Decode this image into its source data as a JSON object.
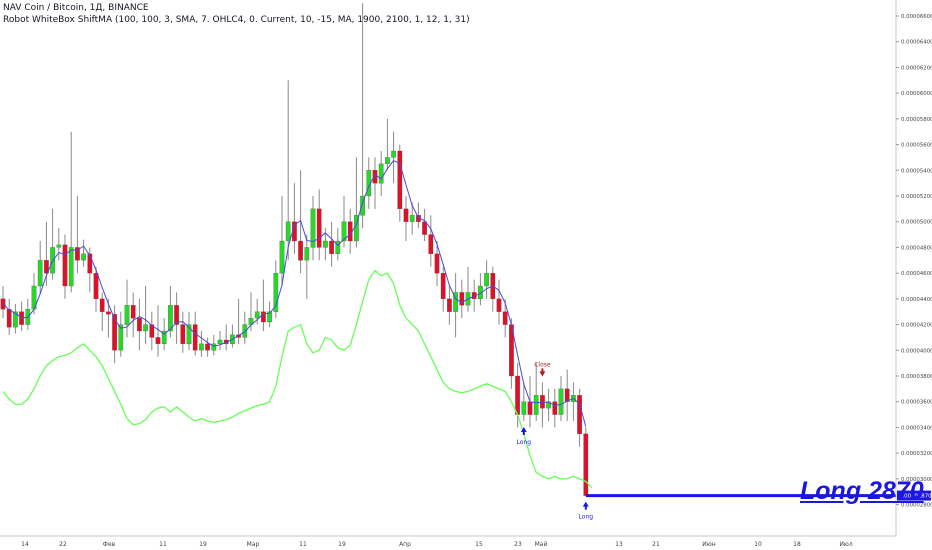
{
  "header": {
    "symbol_line": "NAV Coin / Bitcoin, 1Д, BINANCE",
    "indicator_line": "Robot WhiteBox ShiftMA (100, 100, 3, SMA, 7. OHLC4, 0. Current, 10, -15, MA, 1900, 2100, 1, 12, 1, 31)"
  },
  "chart_data": {
    "type": "candlestick",
    "title": "NAV Coin / Bitcoin, 1Д, BINANCE",
    "y_range": [
      2.67e-05,
      6.7e-05
    ],
    "y_ticks": [
      "0.00006600",
      "0.00006400",
      "0.00006200",
      "0.00006000",
      "0.00005800",
      "0.00005600",
      "0.00005400",
      "0.00005200",
      "0.00005000",
      "0.00004800",
      "0.00004600",
      "0.00004400",
      "0.00004200",
      "0.00004000",
      "0.00003800",
      "0.00003600",
      "0.00003400",
      "0.00003200",
      "0.00003000",
      "0.00002800"
    ],
    "x_ticks": [
      "14",
      "22",
      "Фев",
      "11",
      "19",
      "Мар",
      "11",
      "19",
      "Апр",
      "15",
      "23",
      "Май",
      "13",
      "21",
      "Июн",
      "10",
      "18",
      "Июл"
    ],
    "grid": false,
    "candles": [
      [
        4.4,
        4.32,
        4.5,
        4.25
      ],
      [
        4.32,
        4.18,
        4.4,
        4.12
      ],
      [
        4.18,
        4.3,
        4.36,
        4.13
      ],
      [
        4.3,
        4.2,
        4.38,
        4.15
      ],
      [
        4.2,
        4.32,
        4.4,
        4.16
      ],
      [
        4.32,
        4.5,
        4.6,
        4.28
      ],
      [
        4.5,
        4.7,
        4.85,
        4.44
      ],
      [
        4.7,
        4.6,
        5.0,
        4.5
      ],
      [
        4.6,
        4.8,
        5.1,
        4.55
      ],
      [
        4.8,
        4.82,
        4.95,
        4.7
      ],
      [
        4.82,
        4.5,
        4.9,
        4.4
      ],
      [
        4.5,
        4.8,
        5.7,
        4.45
      ],
      [
        4.8,
        4.7,
        5.2,
        4.6
      ],
      [
        4.7,
        4.75,
        4.86,
        4.65
      ],
      [
        4.75,
        4.6,
        4.8,
        4.45
      ],
      [
        4.6,
        4.4,
        4.65,
        4.3
      ],
      [
        4.4,
        4.3,
        4.45,
        4.15
      ],
      [
        4.3,
        4.28,
        4.4,
        4.1
      ],
      [
        4.28,
        4.0,
        4.35,
        3.9
      ],
      [
        4.0,
        4.2,
        4.3,
        3.95
      ],
      [
        4.2,
        4.35,
        4.55,
        4.1
      ],
      [
        4.35,
        4.25,
        4.45,
        4.1
      ],
      [
        4.25,
        4.15,
        4.4,
        4.0
      ],
      [
        4.15,
        4.2,
        4.5,
        4.05
      ],
      [
        4.2,
        4.1,
        4.3,
        4.0
      ],
      [
        4.1,
        4.05,
        4.35,
        3.95
      ],
      [
        4.05,
        4.15,
        4.25,
        4.0
      ],
      [
        4.15,
        4.35,
        4.5,
        4.1
      ],
      [
        4.35,
        4.2,
        4.45,
        4.05
      ],
      [
        4.2,
        4.05,
        4.3,
        3.98
      ],
      [
        4.05,
        4.2,
        4.3,
        4.0
      ],
      [
        4.2,
        4.0,
        4.3,
        3.96
      ],
      [
        4.0,
        4.05,
        4.15,
        3.95
      ],
      [
        4.05,
        4.0,
        4.1,
        3.95
      ],
      [
        4.0,
        4.05,
        4.12,
        3.96
      ],
      [
        4.05,
        4.08,
        4.15,
        4.0
      ],
      [
        4.08,
        4.05,
        4.2,
        4.0
      ],
      [
        4.05,
        4.12,
        4.2,
        4.02
      ],
      [
        4.12,
        4.1,
        4.4,
        4.05
      ],
      [
        4.1,
        4.2,
        4.3,
        4.05
      ],
      [
        4.2,
        4.25,
        4.45,
        4.15
      ],
      [
        4.25,
        4.3,
        4.4,
        4.2
      ],
      [
        4.3,
        4.22,
        4.55,
        4.15
      ],
      [
        4.22,
        4.3,
        4.38,
        4.18
      ],
      [
        4.3,
        4.6,
        4.7,
        4.25
      ],
      [
        4.6,
        4.85,
        5.2,
        4.5
      ],
      [
        4.85,
        5.0,
        6.1,
        4.7
      ],
      [
        5.0,
        4.85,
        5.3,
        4.75
      ],
      [
        4.85,
        4.7,
        5.4,
        4.6
      ],
      [
        4.7,
        4.8,
        4.9,
        4.4
      ],
      [
        4.8,
        5.1,
        5.2,
        4.7
      ],
      [
        5.1,
        4.8,
        5.25,
        4.7
      ],
      [
        4.8,
        4.85,
        4.95,
        4.7
      ],
      [
        4.85,
        4.75,
        5.0,
        4.65
      ],
      [
        4.75,
        4.85,
        4.95,
        4.7
      ],
      [
        4.85,
        5.0,
        5.2,
        4.8
      ],
      [
        5.0,
        4.85,
        5.1,
        4.75
      ],
      [
        4.85,
        5.05,
        5.5,
        4.8
      ],
      [
        5.05,
        5.2,
        6.7,
        4.95
      ],
      [
        5.2,
        5.4,
        5.5,
        5.1
      ],
      [
        5.4,
        5.3,
        5.5,
        5.1
      ],
      [
        5.3,
        5.45,
        5.55,
        5.2
      ],
      [
        5.45,
        5.5,
        5.8,
        5.4
      ],
      [
        5.5,
        5.55,
        5.7,
        5.3
      ],
      [
        5.55,
        5.1,
        5.6,
        5.0
      ],
      [
        5.1,
        5.0,
        5.2,
        4.85
      ],
      [
        5.0,
        5.05,
        5.15,
        4.9
      ],
      [
        5.05,
        5.0,
        5.15,
        4.95
      ],
      [
        5.0,
        4.9,
        5.1,
        4.85
      ],
      [
        4.9,
        4.75,
        5.05,
        4.65
      ],
      [
        4.75,
        4.6,
        4.85,
        4.5
      ],
      [
        4.6,
        4.4,
        4.65,
        4.3
      ],
      [
        4.4,
        4.3,
        4.5,
        4.2
      ],
      [
        4.3,
        4.45,
        4.6,
        4.1
      ],
      [
        4.45,
        4.35,
        4.55,
        4.25
      ],
      [
        4.35,
        4.45,
        4.65,
        4.3
      ],
      [
        4.45,
        4.4,
        4.55,
        4.3
      ],
      [
        4.4,
        4.5,
        4.6,
        4.35
      ],
      [
        4.5,
        4.6,
        4.7,
        4.4
      ],
      [
        4.6,
        4.4,
        4.65,
        4.3
      ],
      [
        4.4,
        4.3,
        4.55,
        4.2
      ],
      [
        4.3,
        4.2,
        4.4,
        4.1
      ],
      [
        4.2,
        3.8,
        4.25,
        3.7
      ],
      [
        3.8,
        3.5,
        3.9,
        3.4
      ],
      [
        3.5,
        3.6,
        3.75,
        3.45
      ],
      [
        3.6,
        3.5,
        3.8,
        3.4
      ],
      [
        3.5,
        3.65,
        3.9,
        3.45
      ],
      [
        3.65,
        3.55,
        3.75,
        3.4
      ],
      [
        3.55,
        3.6,
        3.7,
        3.45
      ],
      [
        3.6,
        3.5,
        3.7,
        3.4
      ],
      [
        3.5,
        3.7,
        3.8,
        3.45
      ],
      [
        3.7,
        3.6,
        3.85,
        3.45
      ],
      [
        3.6,
        3.65,
        3.75,
        3.45
      ],
      [
        3.65,
        3.35,
        3.7,
        3.25
      ],
      [
        3.35,
        2.87,
        3.4,
        2.87
      ]
    ],
    "shifted_ma": [
      3.68,
      3.62,
      3.58,
      3.58,
      3.62,
      3.7,
      3.8,
      3.88,
      3.92,
      3.95,
      3.96,
      3.98,
      4.02,
      4.05,
      4.0,
      3.95,
      3.88,
      3.78,
      3.68,
      3.58,
      3.47,
      3.42,
      3.43,
      3.46,
      3.52,
      3.55,
      3.56,
      3.52,
      3.56,
      3.52,
      3.48,
      3.45,
      3.47,
      3.45,
      3.44,
      3.45,
      3.46,
      3.48,
      3.51,
      3.53,
      3.55,
      3.57,
      3.58,
      3.6,
      3.72,
      3.95,
      4.15,
      4.18,
      4.2,
      4.05,
      3.98,
      4.0,
      4.1,
      4.08,
      4.02,
      4.0,
      4.04,
      4.2,
      4.38,
      4.55,
      4.62,
      4.58,
      4.6,
      4.52,
      4.35,
      4.25,
      4.2,
      4.15,
      4.05,
      3.95,
      3.85,
      3.75,
      3.7,
      3.68,
      3.67,
      3.68,
      3.7,
      3.72,
      3.74,
      3.72,
      3.7,
      3.68,
      3.6,
      3.5,
      3.35,
      3.18,
      3.05,
      3.02,
      3.0,
      3.02,
      3.0,
      3.0,
      3.02,
      3.0,
      2.98,
      2.93
    ],
    "signals": [
      {
        "type": "Long",
        "candle": 84,
        "marker": "up-arrow"
      },
      {
        "type": "Close",
        "candle": 87,
        "marker": "down-arrow"
      },
      {
        "type": "Long",
        "candle": 96,
        "marker": "up-arrow"
      }
    ],
    "long_level": {
      "label": "Long 2870",
      "price": 2.87e-05,
      "price_label": "0.00002870"
    },
    "colors": {
      "up": "#26d926",
      "down": "#e0102a",
      "wick": "#888888",
      "ma_line": "#4a4ad6",
      "shifted_ma": "#66ff55",
      "long_line": "#1c17e0",
      "close_marker": "#b31a1a",
      "axis_text": "#444444"
    }
  }
}
